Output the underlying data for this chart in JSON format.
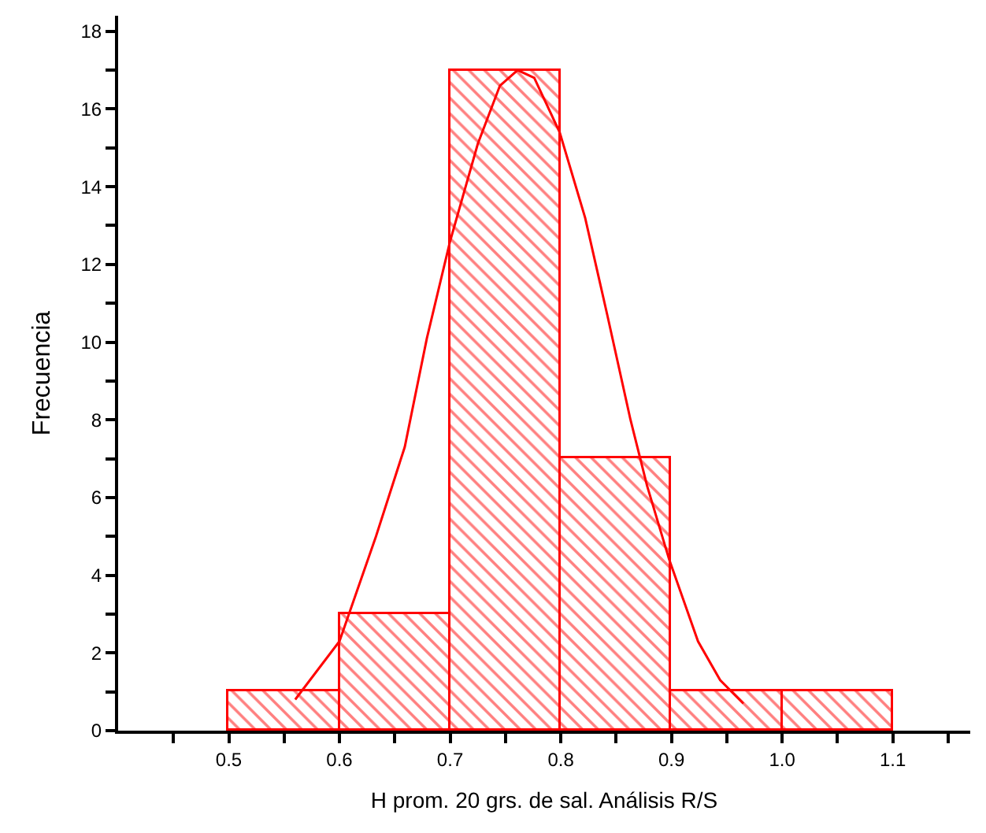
{
  "chart_data": {
    "type": "histogram",
    "xlabel": "H prom. 20 grs. de sal. Análisis R/S",
    "ylabel": "Frecuencia",
    "bins": [
      0.5,
      0.6,
      0.7,
      0.8,
      0.9,
      1.0,
      1.1
    ],
    "values": [
      1,
      3,
      17,
      7,
      1,
      1
    ],
    "color": "#ff0000",
    "series": [
      {
        "type": "line",
        "color": "#ff0000",
        "x": [
          0.56,
          0.6,
          0.633,
          0.659,
          0.679,
          0.7,
          0.725,
          0.745,
          0.761,
          0.776,
          0.799,
          0.822,
          0.842,
          0.863,
          0.878,
          0.898,
          0.924,
          0.944,
          0.965
        ],
        "values": [
          0.8,
          2.3,
          5.0,
          7.3,
          10.1,
          12.6,
          15.1,
          16.6,
          17.0,
          16.8,
          15.4,
          13.2,
          10.7,
          8.0,
          6.3,
          4.4,
          2.3,
          1.3,
          0.7
        ]
      }
    ],
    "xlim": [
      0.4,
      1.17
    ],
    "ylim": [
      0,
      18.4
    ],
    "xticks": [
      {
        "value": 0.45,
        "label": null
      },
      {
        "value": 0.5,
        "label": "0.5"
      },
      {
        "value": 0.55,
        "label": null
      },
      {
        "value": 0.6,
        "label": "0.6"
      },
      {
        "value": 0.65,
        "label": null
      },
      {
        "value": 0.7,
        "label": "0.7"
      },
      {
        "value": 0.75,
        "label": null
      },
      {
        "value": 0.8,
        "label": "0.8"
      },
      {
        "value": 0.85,
        "label": null
      },
      {
        "value": 0.9,
        "label": "0.9"
      },
      {
        "value": 0.95,
        "label": null
      },
      {
        "value": 1.0,
        "label": "1.0"
      },
      {
        "value": 1.05,
        "label": null
      },
      {
        "value": 1.1,
        "label": "1.1"
      },
      {
        "value": 1.15,
        "label": null
      }
    ],
    "yticks": [
      0,
      {
        "value": 1,
        "label": null
      },
      2,
      {
        "value": 3,
        "label": null
      },
      4,
      {
        "value": 5,
        "label": null
      },
      6,
      {
        "value": 7,
        "label": null
      },
      8,
      {
        "value": 9,
        "label": null
      },
      10,
      {
        "value": 11,
        "label": null
      },
      12,
      {
        "value": 13,
        "label": null
      },
      14,
      {
        "value": 15,
        "label": null
      },
      16,
      {
        "value": 17,
        "label": null
      },
      18
    ],
    "marker": "none"
  }
}
